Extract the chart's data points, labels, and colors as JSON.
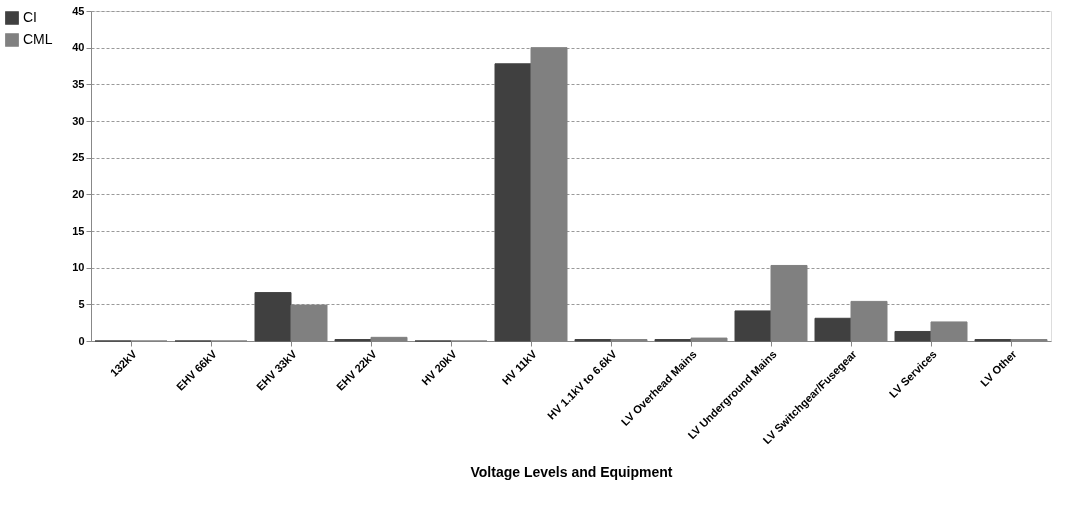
{
  "chart_data": {
    "type": "bar",
    "xlabel": "Voltage Levels and Equipment",
    "categories": [
      "132kV",
      "EHV 66kV",
      "EHV 33kV",
      "EHV 22kV",
      "HV 20kV",
      "HV 11kV",
      "HV 1.1kV to 6.6kV",
      "LV Overhead Mains",
      "LV Underground Mains",
      "LV Switchgear/Fusegear",
      "LV Services",
      "LV Other"
    ],
    "series": [
      {
        "name": "CI",
        "color": "#404040",
        "values": [
          0,
          0,
          6.6,
          0.2,
          0,
          37.8,
          0.2,
          0.2,
          4.1,
          3.1,
          1.3,
          0.2
        ]
      },
      {
        "name": "CML",
        "color": "#808080",
        "values": [
          0,
          0,
          4.9,
          0.5,
          0,
          40,
          0.2,
          0.4,
          10.3,
          5.4,
          2.6,
          0.2
        ]
      }
    ],
    "ylim": [
      0,
      45
    ],
    "yticks": [
      0,
      5,
      10,
      15,
      20,
      25,
      30,
      35,
      40,
      45
    ],
    "grid": "y",
    "legend": "left"
  }
}
